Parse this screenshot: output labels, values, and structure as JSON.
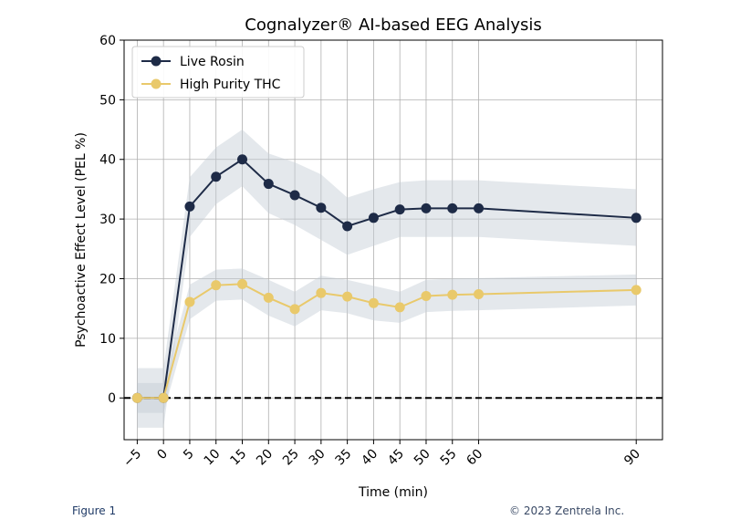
{
  "chart_data": {
    "type": "line",
    "title": "Cognalyzer® AI-based EEG Analysis",
    "xlabel": "Time (min)",
    "ylabel": "Psychoactive Effect Level (PEL %)",
    "xlim": [
      -7.5,
      95
    ],
    "ylim": [
      -7,
      60
    ],
    "xticks": [
      -5,
      0,
      5,
      10,
      15,
      20,
      25,
      30,
      35,
      40,
      45,
      50,
      55,
      60,
      90
    ],
    "xtick_labels": [
      "−5",
      "0",
      "5",
      "10",
      "15",
      "20",
      "25",
      "30",
      "35",
      "40",
      "45",
      "50",
      "55",
      "60",
      "90"
    ],
    "yticks": [
      0,
      10,
      20,
      30,
      40,
      50,
      60
    ],
    "ytick_labels": [
      "0",
      "10",
      "20",
      "30",
      "40",
      "50",
      "60"
    ],
    "grid": true,
    "legend_position": "top-left",
    "reference_line": {
      "y": 0,
      "style": "dashed",
      "color": "#000000"
    },
    "x": [
      -5,
      0,
      5,
      10,
      15,
      20,
      25,
      30,
      35,
      40,
      45,
      50,
      55,
      60,
      90
    ],
    "series": [
      {
        "name": "Live Rosin",
        "color": "#1e2b47",
        "values": [
          0,
          0,
          32.1,
          37.1,
          40,
          35.9,
          34,
          31.9,
          28.8,
          30.2,
          31.6,
          31.8,
          31.8,
          31.8,
          30.2
        ],
        "band_upper": [
          5,
          5,
          37,
          42,
          45,
          41,
          39.5,
          37.5,
          33.6,
          35,
          36.2,
          36.5,
          36.5,
          36.5,
          35
        ],
        "band_lower": [
          -5,
          -5,
          27,
          32.5,
          35.5,
          31,
          29,
          26.5,
          24,
          25.5,
          27,
          27,
          27,
          27,
          25.5
        ]
      },
      {
        "name": "High Purity THC",
        "color": "#e9c96b",
        "values": [
          0,
          0,
          16.1,
          18.9,
          19.1,
          16.8,
          14.9,
          17.6,
          17,
          15.9,
          15.2,
          17.1,
          17.3,
          17.4,
          18.1
        ],
        "band_upper": [
          2.5,
          2.5,
          19,
          21.5,
          21.7,
          19.8,
          17.8,
          20.5,
          19.8,
          18.8,
          17.8,
          19.8,
          20,
          20.1,
          20.7
        ],
        "band_lower": [
          -2.5,
          -2.5,
          13.2,
          16.3,
          16.5,
          13.8,
          12,
          14.7,
          14.2,
          13,
          12.6,
          14.4,
          14.6,
          14.7,
          15.5
        ]
      }
    ]
  },
  "footer": {
    "figure_label": "Figure 1",
    "copyright": "© 2023 Zentrela Inc."
  },
  "colors": {
    "band_fill": "#c4cbd5",
    "grid": "#b0b0b0",
    "axis": "#000000"
  }
}
